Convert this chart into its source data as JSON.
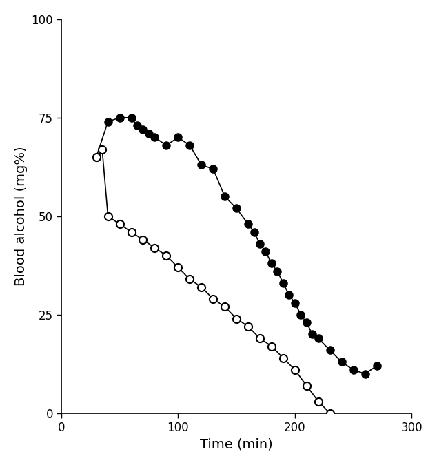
{
  "dark_x": [
    30,
    40,
    50,
    60,
    65,
    70,
    75,
    80,
    90,
    100,
    110,
    120,
    130,
    140,
    150,
    160,
    165,
    170,
    175,
    180,
    185,
    190,
    195,
    200,
    205,
    210,
    215,
    220,
    230,
    240,
    250,
    260,
    270
  ],
  "dark_y": [
    65,
    74,
    75,
    75,
    73,
    72,
    71,
    70,
    68,
    70,
    68,
    63,
    62,
    55,
    52,
    48,
    46,
    43,
    41,
    38,
    36,
    33,
    30,
    28,
    25,
    23,
    20,
    19,
    16,
    13,
    11,
    10,
    12
  ],
  "open_x": [
    30,
    35,
    40,
    50,
    60,
    70,
    80,
    90,
    100,
    110,
    120,
    130,
    140,
    150,
    160,
    170,
    180,
    190,
    200,
    210,
    220,
    230
  ],
  "open_y": [
    65,
    67,
    50,
    48,
    46,
    44,
    42,
    40,
    37,
    34,
    32,
    29,
    27,
    24,
    22,
    19,
    17,
    14,
    11,
    7,
    3,
    0
  ],
  "xlim": [
    0,
    300
  ],
  "ylim": [
    0,
    100
  ],
  "xticks": [
    0,
    100,
    200,
    300
  ],
  "yticks": [
    0,
    25,
    50,
    75,
    100
  ],
  "xlabel": "Time (min)",
  "ylabel": "Blood alcohol (mg%)",
  "marker_size": 8,
  "line_color": "#000000",
  "background_color": "#ffffff",
  "linewidth": 1.2,
  "markeredgewidth": 1.5
}
